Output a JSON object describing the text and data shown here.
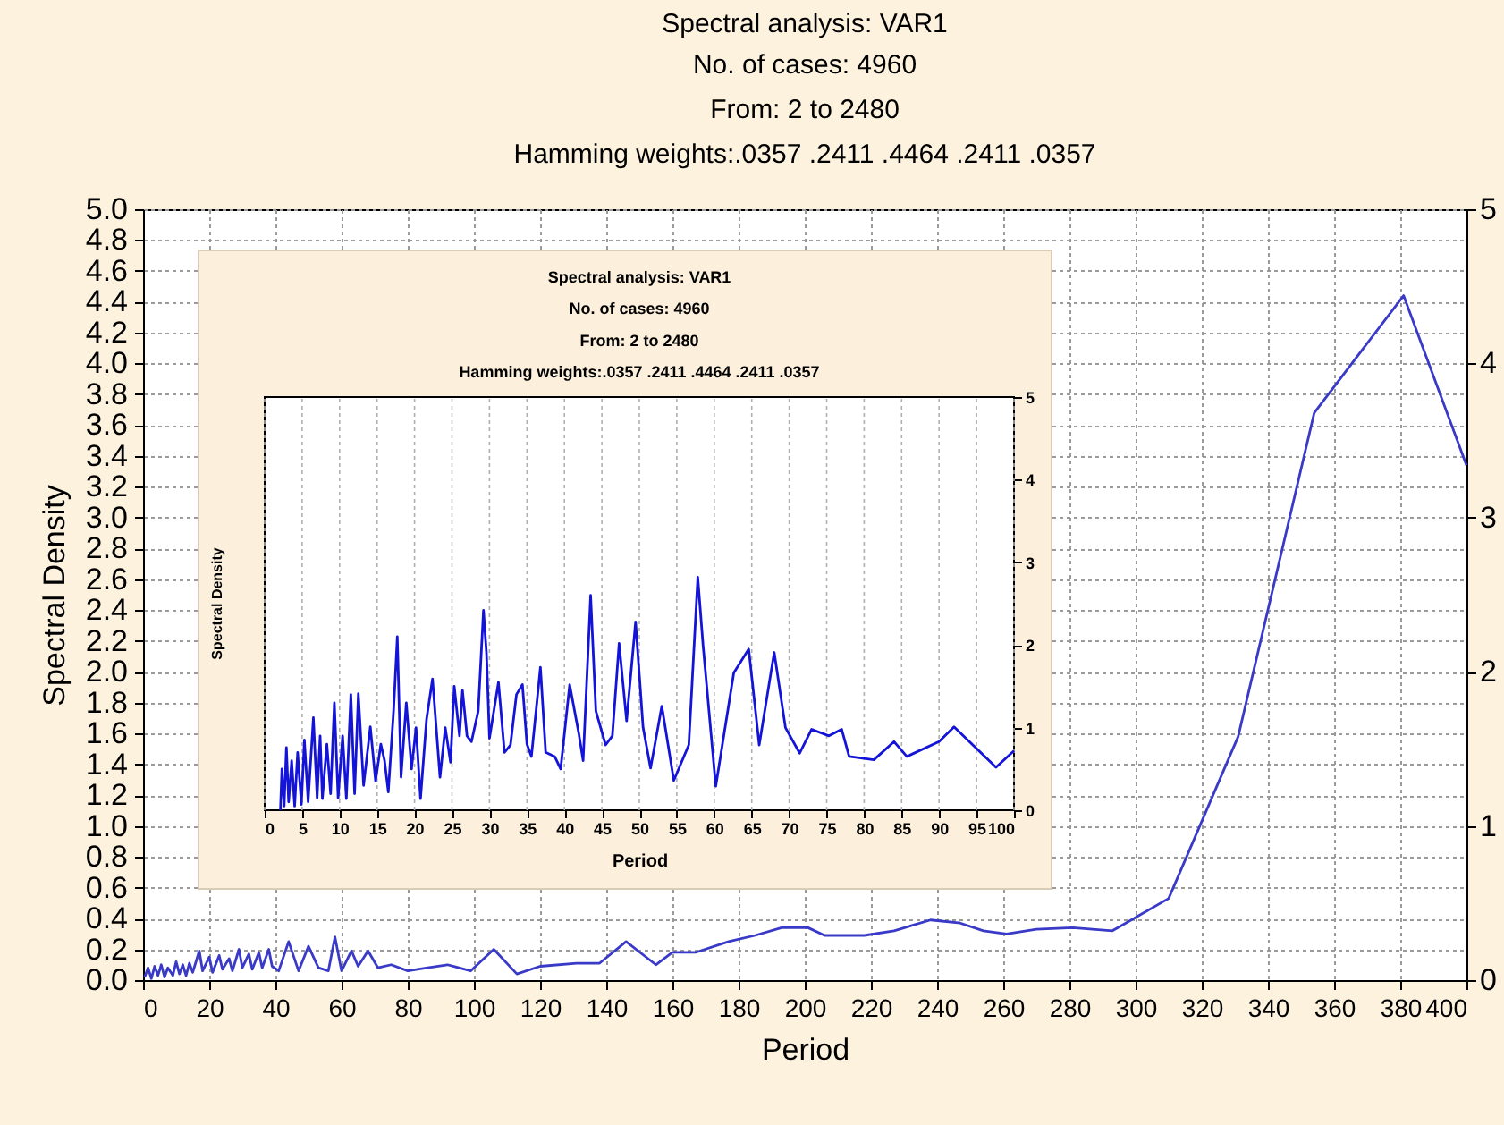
{
  "chart_data": [
    {
      "type": "line",
      "title": "Spectral analysis: VAR1",
      "subtitle": "No. of cases: 4960\nFrom: 2  to  2480\nHamming weights:.0357 .2411 .4464 .2411 .0357",
      "xlabel": "Period",
      "ylabel": "Spectral Density",
      "x": [
        0.5,
        1.5,
        2.5,
        3.5,
        4.5,
        5.5,
        6.5,
        7.5,
        9,
        10,
        11,
        12,
        13,
        14,
        15,
        17,
        18,
        20,
        21,
        23,
        24,
        26,
        27,
        29,
        30,
        32,
        33,
        35,
        36,
        38,
        39,
        41,
        44,
        47,
        50,
        53,
        56,
        58,
        60,
        63,
        65,
        68,
        71,
        75,
        80,
        86,
        92,
        99,
        106,
        113,
        120,
        131,
        138,
        146,
        155,
        160,
        167,
        177,
        185,
        193,
        201,
        206,
        218,
        227,
        238,
        247,
        254,
        261,
        270,
        281,
        293,
        310,
        331,
        354,
        381,
        400
      ],
      "series": [
        {
          "color": "#3a3ac8",
          "values": [
            0.02,
            0.08,
            0.01,
            0.09,
            0.03,
            0.1,
            0.02,
            0.08,
            0.03,
            0.12,
            0.04,
            0.1,
            0.03,
            0.11,
            0.05,
            0.19,
            0.06,
            0.15,
            0.05,
            0.16,
            0.07,
            0.14,
            0.06,
            0.2,
            0.08,
            0.17,
            0.07,
            0.18,
            0.08,
            0.2,
            0.09,
            0.06,
            0.25,
            0.06,
            0.22,
            0.08,
            0.06,
            0.28,
            0.06,
            0.19,
            0.09,
            0.19,
            0.08,
            0.1,
            0.06,
            0.08,
            0.1,
            0.06,
            0.2,
            0.04,
            0.09,
            0.11,
            0.11,
            0.25,
            0.1,
            0.18,
            0.18,
            0.25,
            0.29,
            0.34,
            0.34,
            0.29,
            0.29,
            0.32,
            0.39,
            0.37,
            0.32,
            0.3,
            0.33,
            0.34,
            0.32,
            0.53,
            1.58,
            3.68,
            4.44,
            3.34
          ]
        }
      ],
      "xlim": [
        0,
        400
      ],
      "xticks": [
        0,
        20,
        40,
        60,
        80,
        100,
        120,
        140,
        160,
        180,
        200,
        220,
        240,
        260,
        280,
        300,
        320,
        340,
        360,
        380,
        400
      ],
      "ylim": [
        0,
        5
      ],
      "yticks": [
        {
          "value": 0,
          "label": "0.0"
        },
        0.2,
        0.4,
        0.6,
        0.8,
        {
          "value": 1,
          "label": "1.0"
        },
        1.2,
        1.4,
        1.6,
        1.8,
        {
          "value": 2,
          "label": "2.0"
        },
        2.2,
        2.4,
        2.6,
        2.8,
        {
          "value": 3,
          "label": "3.0"
        },
        3.2,
        3.4,
        3.6,
        3.8,
        {
          "value": 4,
          "label": "4.0"
        },
        4.2,
        4.4,
        4.6,
        4.8,
        {
          "value": 5,
          "label": "5.0"
        }
      ],
      "y2lim": [
        0,
        5
      ],
      "y2ticks": [
        0,
        1,
        2,
        3,
        4,
        5
      ],
      "grid": true,
      "legend": false,
      "marker": "none",
      "line_style": "solid"
    },
    {
      "type": "line",
      "title": "Spectral analysis: VAR1",
      "subtitle": "No. of cases: 4960\nFrom: 2  to  2480\nHamming weights:.0357 .2411 .4464 .2411 .0357",
      "xlabel": "Period",
      "ylabel": "Spectral Density",
      "x": [
        2.1,
        2.3,
        2.6,
        2.9,
        3.2,
        3.6,
        4,
        4.4,
        4.9,
        5.3,
        5.8,
        6.5,
        7,
        7.4,
        7.7,
        8.3,
        8.8,
        9.3,
        9.8,
        10.4,
        10.9,
        11.5,
        12,
        12.5,
        13.2,
        14.1,
        14.8,
        15.5,
        16,
        16.5,
        17.2,
        17.7,
        18.2,
        18.9,
        19.6,
        20.2,
        20.8,
        21.6,
        22.4,
        23.4,
        24.1,
        24.8,
        25.3,
        26,
        26.4,
        27,
        27.6,
        28.5,
        29.2,
        29.6,
        30,
        31.2,
        32,
        32.8,
        33.6,
        34.4,
        35,
        35.6,
        36.8,
        37.5,
        38.7,
        39.5,
        40.7,
        41.9,
        42.5,
        43.5,
        44.2,
        45.5,
        46.4,
        47.3,
        48.3,
        49.5,
        50.5,
        51.5,
        53,
        54.6,
        56.6,
        57.8,
        58.5,
        60.2,
        62.6,
        64.6,
        66,
        68,
        69.5,
        71.4,
        73,
        75.3,
        77,
        78,
        81.3,
        84,
        85.7,
        90,
        92,
        97.6,
        100
      ],
      "series": [
        {
          "color": "#1414d8",
          "values": [
            0,
            0.5,
            0.05,
            0.76,
            0.1,
            0.6,
            0.05,
            0.7,
            0.07,
            0.85,
            0.1,
            1.12,
            0.15,
            0.9,
            0.14,
            0.8,
            0.2,
            1.3,
            0.15,
            0.9,
            0.14,
            1.4,
            0.2,
            1.41,
            0.3,
            1.01,
            0.35,
            0.8,
            0.6,
            0.22,
            1.2,
            2.1,
            0.4,
            1.3,
            0.5,
            1.0,
            0.14,
            1.1,
            1.59,
            0.4,
            1.0,
            0.58,
            1.5,
            0.9,
            1.45,
            0.9,
            0.83,
            1.2,
            2.42,
            1.9,
            0.87,
            1.55,
            0.7,
            0.79,
            1.4,
            1.52,
            0.8,
            0.65,
            1.73,
            0.7,
            0.65,
            0.5,
            1.52,
            0.94,
            0.6,
            2.6,
            1.2,
            0.79,
            0.9,
            2.02,
            1.08,
            2.28,
            1.0,
            0.51,
            1.26,
            0.36,
            0.79,
            2.82,
            2.0,
            0.29,
            1.66,
            1.95,
            0.79,
            1.91,
            1.0,
            0.69,
            0.98,
            0.9,
            0.98,
            0.65,
            0.61,
            0.83,
            0.65,
            0.83,
            1.01,
            0.52,
            0.72
          ]
        }
      ],
      "xlim": [
        0,
        100
      ],
      "xticks": [
        0,
        5,
        10,
        15,
        20,
        25,
        30,
        35,
        40,
        45,
        50,
        55,
        60,
        65,
        70,
        75,
        80,
        85,
        90,
        95,
        100
      ],
      "ylim": [
        0,
        5
      ],
      "yticks": [
        0,
        1,
        2,
        3,
        4,
        5
      ],
      "grid": "x",
      "legend": false,
      "marker": "none",
      "line_style": "solid"
    }
  ]
}
